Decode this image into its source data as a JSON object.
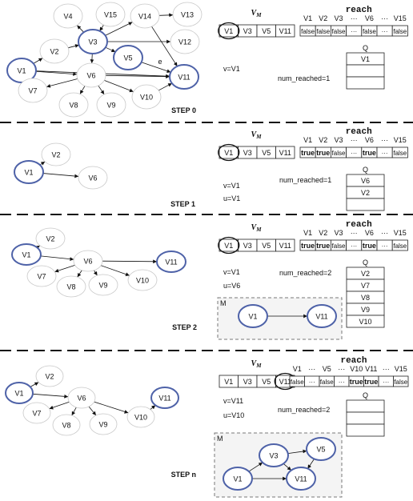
{
  "vm_symbol": "V",
  "vm_subscript": "M",
  "reach_title": "reach",
  "queue_title": "Q",
  "edge_label": "e",
  "m_label": "M",
  "dots": "...",
  "steps": [
    {
      "label": "STEP 0",
      "vars": [
        "v=V1"
      ],
      "num_reached": "num_reached=1",
      "vm_cells": [
        "V1",
        "V3",
        "V5",
        "V11"
      ],
      "vm_circled": 0,
      "reach_headers": [
        "V1",
        "V2",
        "V3",
        "···",
        "V6",
        "···",
        "V15"
      ],
      "reach_values": [
        "false",
        "false",
        "false",
        "···",
        "false",
        "···",
        "false"
      ],
      "queue": [
        "V1",
        "",
        ""
      ],
      "graph": {
        "nodes": [
          {
            "id": "V1",
            "blue": true
          },
          {
            "id": "V2",
            "blue": false
          },
          {
            "id": "V3",
            "blue": true
          },
          {
            "id": "V4",
            "blue": false
          },
          {
            "id": "V5",
            "blue": true
          },
          {
            "id": "V6",
            "blue": false
          },
          {
            "id": "V7",
            "blue": false
          },
          {
            "id": "V8",
            "blue": false
          },
          {
            "id": "V9",
            "blue": false
          },
          {
            "id": "V10",
            "blue": false
          },
          {
            "id": "V11",
            "blue": true
          },
          {
            "id": "V12",
            "blue": false
          },
          {
            "id": "V13",
            "blue": false
          },
          {
            "id": "V14",
            "blue": false
          },
          {
            "id": "V15",
            "blue": false
          }
        ],
        "edges": [
          [
            "V1",
            "V2"
          ],
          [
            "V1",
            "V6"
          ],
          [
            "V1",
            "V11"
          ],
          [
            "V2",
            "V3"
          ],
          [
            "V3",
            "V4"
          ],
          [
            "V3",
            "V14"
          ],
          [
            "V3",
            "V12"
          ],
          [
            "V3",
            "V5"
          ],
          [
            "V3",
            "V6"
          ],
          [
            "V15",
            "V3"
          ],
          [
            "V14",
            "V13"
          ],
          [
            "V14",
            "V11"
          ],
          [
            "V5",
            "V11"
          ],
          [
            "V6",
            "V7"
          ],
          [
            "V6",
            "V8"
          ],
          [
            "V6",
            "V9"
          ],
          [
            "V6",
            "V10"
          ],
          [
            "V10",
            "V11"
          ],
          [
            "V6",
            "V11"
          ]
        ]
      }
    },
    {
      "label": "STEP 1",
      "vars": [
        "v=V1",
        "u=V1"
      ],
      "num_reached": "num_reached=1",
      "vm_cells": [
        "V1",
        "V3",
        "V5",
        "V11"
      ],
      "vm_circled": 0,
      "reach_headers": [
        "V1",
        "V2",
        "V3",
        "···",
        "V6",
        "···",
        "V15"
      ],
      "reach_values": [
        "true",
        "true",
        "false",
        "···",
        "true",
        "···",
        "false"
      ],
      "queue": [
        "V6",
        "V2",
        ""
      ],
      "graph": {
        "nodes": [
          {
            "id": "V1",
            "blue": true
          },
          {
            "id": "V2",
            "blue": false
          },
          {
            "id": "V6",
            "blue": false
          }
        ],
        "edges": [
          [
            "V1",
            "V2"
          ],
          [
            "V1",
            "V6"
          ]
        ]
      }
    },
    {
      "label": "STEP 2",
      "vars": [
        "v=V1",
        "u=V6"
      ],
      "num_reached": "num_reached=2",
      "vm_cells": [
        "V1",
        "V3",
        "V5",
        "V11"
      ],
      "vm_circled": 0,
      "reach_headers": [
        "V1",
        "V2",
        "V3",
        "···",
        "V6",
        "···",
        "V15"
      ],
      "reach_values": [
        "true",
        "true",
        "false",
        "···",
        "true",
        "···",
        "false"
      ],
      "queue": [
        "V2",
        "V7",
        "V8",
        "V9",
        "V10"
      ],
      "graph": {
        "nodes": [
          {
            "id": "V1",
            "blue": true
          },
          {
            "id": "V2",
            "blue": false
          },
          {
            "id": "V6",
            "blue": false
          },
          {
            "id": "V7",
            "blue": false
          },
          {
            "id": "V8",
            "blue": false
          },
          {
            "id": "V9",
            "blue": false
          },
          {
            "id": "V10",
            "blue": false
          },
          {
            "id": "V11",
            "blue": true
          }
        ],
        "edges": [
          [
            "V1",
            "V2"
          ],
          [
            "V1",
            "V6"
          ],
          [
            "V6",
            "V7"
          ],
          [
            "V6",
            "V8"
          ],
          [
            "V6",
            "V9"
          ],
          [
            "V6",
            "V10"
          ],
          [
            "V6",
            "V11"
          ]
        ]
      },
      "m_graph": {
        "nodes": [
          {
            "id": "V1",
            "blue": true
          },
          {
            "id": "V11",
            "blue": true
          }
        ],
        "edges": [
          [
            "V1",
            "V11"
          ]
        ]
      }
    },
    {
      "label": "STEP n",
      "vars": [
        "v=V11",
        "u=V10"
      ],
      "num_reached": "num_reached=2",
      "vm_cells": [
        "V1",
        "V3",
        "V5",
        "V11"
      ],
      "vm_circled": 3,
      "reach_headers": [
        "V1",
        "···",
        "V5",
        "···",
        "V10",
        "V11",
        "···",
        "V15"
      ],
      "reach_values": [
        "false",
        "···",
        "false",
        "···",
        "true",
        "true",
        "···",
        "false"
      ],
      "queue": [
        "",
        "",
        ""
      ],
      "graph": {
        "nodes": [
          {
            "id": "V1",
            "blue": true
          },
          {
            "id": "V2",
            "blue": false
          },
          {
            "id": "V6",
            "blue": false
          },
          {
            "id": "V7",
            "blue": false
          },
          {
            "id": "V8",
            "blue": false
          },
          {
            "id": "V9",
            "blue": false
          },
          {
            "id": "V10",
            "blue": false
          },
          {
            "id": "V11",
            "blue": true
          }
        ],
        "edges": [
          [
            "V1",
            "V2"
          ],
          [
            "V1",
            "V6"
          ],
          [
            "V6",
            "V7"
          ],
          [
            "V6",
            "V8"
          ],
          [
            "V6",
            "V9"
          ],
          [
            "V6",
            "V10"
          ],
          [
            "V10",
            "V11"
          ]
        ]
      },
      "m_graph": {
        "nodes": [
          {
            "id": "V1",
            "blue": true
          },
          {
            "id": "V3",
            "blue": true
          },
          {
            "id": "V5",
            "blue": true
          },
          {
            "id": "V11",
            "blue": true
          }
        ],
        "edges": [
          [
            "V1",
            "V3"
          ],
          [
            "V1",
            "V11"
          ],
          [
            "V3",
            "V5"
          ],
          [
            "V3",
            "V11"
          ],
          [
            "V5",
            "V11"
          ]
        ]
      }
    }
  ]
}
